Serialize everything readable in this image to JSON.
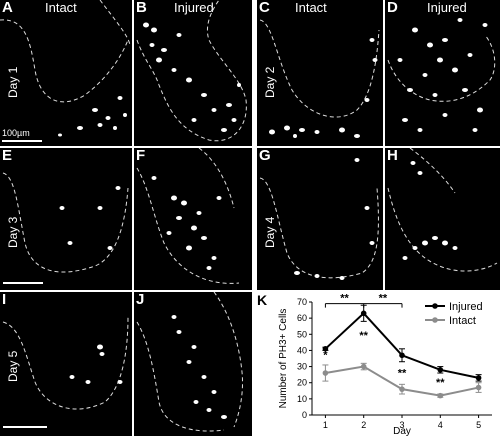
{
  "panels": [
    {
      "id": "A",
      "title": "Intact",
      "day": "Day 1",
      "scale": "100µm"
    },
    {
      "id": "B",
      "title": "Injured"
    },
    {
      "id": "C",
      "title": "Intact",
      "day": "Day 2"
    },
    {
      "id": "D",
      "title": "Injured"
    },
    {
      "id": "E",
      "day": "Day 3"
    },
    {
      "id": "F"
    },
    {
      "id": "G",
      "day": "Day 4"
    },
    {
      "id": "H"
    },
    {
      "id": "I",
      "day": "Day 5"
    },
    {
      "id": "J"
    }
  ],
  "chart_panel_label": "K",
  "colors": {
    "injured": "#000000",
    "intact": "#8c8c8c",
    "background": "#000000",
    "cells": "#ffffff"
  },
  "chart_data": {
    "type": "line",
    "xlabel": "Day",
    "ylabel": "Number of PH3+ Cells",
    "x": [
      1,
      2,
      3,
      4,
      5
    ],
    "ylim": [
      0,
      70
    ],
    "yticks": [
      0,
      10,
      20,
      30,
      40,
      50,
      60,
      70
    ],
    "legend_position": "top-right",
    "series": [
      {
        "name": "Injured",
        "values": [
          41,
          63,
          37,
          28,
          23
        ],
        "errors": [
          1,
          5,
          4,
          2,
          2
        ]
      },
      {
        "name": "Intact",
        "values": [
          26,
          30,
          16,
          12,
          17
        ],
        "errors": [
          5,
          2,
          3,
          1,
          3
        ]
      }
    ],
    "significance": [
      {
        "day": 1,
        "label": "*"
      },
      {
        "day": 2,
        "label": "**"
      },
      {
        "day": 3,
        "label": "**"
      },
      {
        "day": 4,
        "label": "**"
      }
    ],
    "brackets": [
      {
        "from": 1,
        "to": 2,
        "label": "**"
      },
      {
        "from": 2,
        "to": 3,
        "label": "**"
      }
    ]
  }
}
